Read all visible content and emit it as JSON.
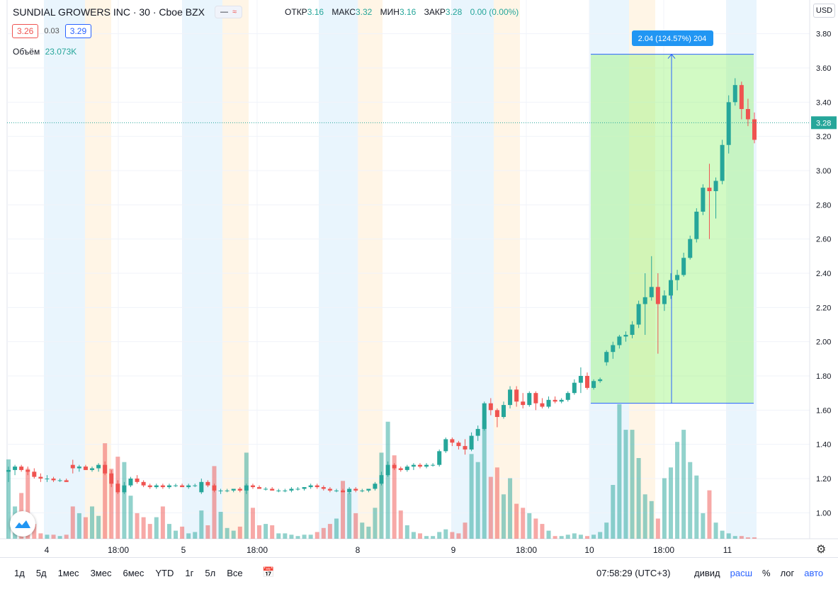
{
  "header": {
    "symbol": "SUNDIAL GROWERS INC · 30 · Cboe BZX",
    "open_label": "ОТКР",
    "open": "3.16",
    "high_label": "МАКС",
    "high": "3.32",
    "low_label": "МИН",
    "low": "3.16",
    "close_label": "ЗАКР",
    "close": "3.28",
    "change": "0.00 (0.00%)"
  },
  "quote": {
    "bid": "3.26",
    "spread": "0.03",
    "ask": "3.29"
  },
  "volume": {
    "label": "Объём",
    "value": "23.073K"
  },
  "currency": "USD",
  "bottom_bar": {
    "ranges": [
      "1д",
      "5д",
      "1мес",
      "3мес",
      "6мес",
      "YTD",
      "1г",
      "5л",
      "Все"
    ],
    "clock": "07:58:29 (UTC+3)",
    "options": [
      "дивид",
      "расш",
      "%",
      "лог",
      "авто"
    ]
  },
  "chart_data": {
    "type": "candlestick",
    "ylim": [
      0.84,
      3.94
    ],
    "y_ticks": [
      "3.80",
      "3.60",
      "3.40",
      "3.20",
      "3.00",
      "2.80",
      "2.60",
      "2.40",
      "2.20",
      "2.00",
      "1.80",
      "1.60",
      "1.40",
      "1.20",
      "1.00"
    ],
    "x_ticks": [
      "4",
      "18:00",
      "5",
      "18:00",
      "8",
      "9",
      "18:00",
      "10",
      "18:00",
      "11"
    ],
    "last_price": "3.28",
    "measure_label": "2.04 (124.57%) 204",
    "measure_range": [
      1.64,
      3.68
    ],
    "colors": {
      "up": "#26a69a",
      "down": "#ef5350",
      "measure": "#2962ff"
    },
    "candles_approx": [
      [
        1.24,
        1.27,
        1.18,
        1.25
      ],
      [
        1.25,
        1.28,
        1.22,
        1.27
      ],
      [
        1.27,
        1.28,
        1.24,
        1.25
      ],
      [
        1.25,
        1.27,
        1.22,
        1.24
      ],
      [
        1.24,
        1.26,
        1.2,
        1.21
      ],
      [
        1.21,
        1.23,
        1.18,
        1.2
      ],
      [
        1.2,
        1.22,
        1.18,
        1.2
      ],
      [
        1.2,
        1.21,
        1.18,
        1.19
      ],
      [
        1.19,
        1.2,
        1.18,
        1.19
      ],
      [
        1.19,
        1.2,
        1.18,
        1.18
      ],
      [
        1.28,
        1.31,
        1.23,
        1.26
      ],
      [
        1.26,
        1.28,
        1.24,
        1.27
      ],
      [
        1.27,
        1.28,
        1.25,
        1.25
      ],
      [
        1.25,
        1.27,
        1.24,
        1.26
      ],
      [
        1.26,
        1.29,
        1.24,
        1.28
      ],
      [
        1.28,
        1.3,
        1.22,
        1.23
      ],
      [
        1.23,
        1.25,
        1.15,
        1.17
      ],
      [
        1.17,
        1.19,
        1.11,
        1.12
      ],
      [
        1.12,
        1.18,
        1.11,
        1.16
      ],
      [
        1.16,
        1.21,
        1.15,
        1.2
      ],
      [
        1.2,
        1.22,
        1.17,
        1.18
      ],
      [
        1.18,
        1.19,
        1.15,
        1.16
      ],
      [
        1.16,
        1.17,
        1.14,
        1.15
      ],
      [
        1.15,
        1.17,
        1.14,
        1.16
      ],
      [
        1.16,
        1.17,
        1.14,
        1.15
      ],
      [
        1.15,
        1.17,
        1.14,
        1.16
      ],
      [
        1.16,
        1.17,
        1.15,
        1.16
      ],
      [
        1.16,
        1.17,
        1.15,
        1.15
      ],
      [
        1.15,
        1.17,
        1.14,
        1.16
      ],
      [
        1.16,
        1.17,
        1.15,
        1.16
      ],
      [
        1.12,
        1.2,
        1.11,
        1.18
      ],
      [
        1.18,
        1.19,
        1.15,
        1.16
      ],
      [
        1.16,
        1.17,
        1.12,
        1.13
      ],
      [
        1.13,
        1.14,
        1.11,
        1.13
      ],
      [
        1.13,
        1.14,
        1.12,
        1.13
      ],
      [
        1.13,
        1.14,
        1.12,
        1.14
      ],
      [
        1.14,
        1.15,
        1.12,
        1.13
      ],
      [
        1.13,
        1.17,
        1.11,
        1.16
      ],
      [
        1.16,
        1.17,
        1.14,
        1.15
      ],
      [
        1.15,
        1.16,
        1.14,
        1.14
      ],
      [
        1.14,
        1.15,
        1.13,
        1.14
      ],
      [
        1.14,
        1.15,
        1.13,
        1.13
      ],
      [
        1.13,
        1.14,
        1.12,
        1.13
      ],
      [
        1.13,
        1.14,
        1.12,
        1.13
      ],
      [
        1.13,
        1.15,
        1.12,
        1.14
      ],
      [
        1.14,
        1.15,
        1.13,
        1.14
      ],
      [
        1.14,
        1.15,
        1.13,
        1.15
      ],
      [
        1.15,
        1.17,
        1.14,
        1.16
      ],
      [
        1.16,
        1.17,
        1.14,
        1.15
      ],
      [
        1.15,
        1.16,
        1.13,
        1.14
      ],
      [
        1.14,
        1.15,
        1.12,
        1.13
      ],
      [
        1.13,
        1.14,
        1.12,
        1.13
      ],
      [
        1.13,
        1.14,
        1.12,
        1.12
      ],
      [
        1.12,
        1.15,
        1.11,
        1.14
      ],
      [
        1.14,
        1.15,
        1.12,
        1.13
      ],
      [
        1.13,
        1.14,
        1.12,
        1.13
      ],
      [
        1.13,
        1.14,
        1.12,
        1.14
      ],
      [
        1.14,
        1.18,
        1.13,
        1.17
      ],
      [
        1.17,
        1.24,
        1.16,
        1.22
      ],
      [
        1.22,
        1.3,
        1.21,
        1.28
      ],
      [
        1.28,
        1.29,
        1.25,
        1.26
      ],
      [
        1.26,
        1.27,
        1.24,
        1.25
      ],
      [
        1.25,
        1.28,
        1.24,
        1.27
      ],
      [
        1.27,
        1.29,
        1.25,
        1.28
      ],
      [
        1.28,
        1.29,
        1.26,
        1.27
      ],
      [
        1.27,
        1.29,
        1.26,
        1.28
      ],
      [
        1.28,
        1.29,
        1.27,
        1.28
      ],
      [
        1.28,
        1.37,
        1.27,
        1.36
      ],
      [
        1.36,
        1.44,
        1.35,
        1.43
      ],
      [
        1.43,
        1.44,
        1.39,
        1.41
      ],
      [
        1.41,
        1.42,
        1.37,
        1.39
      ],
      [
        1.39,
        1.43,
        1.34,
        1.37
      ],
      [
        1.37,
        1.47,
        1.36,
        1.45
      ],
      [
        1.45,
        1.51,
        1.42,
        1.49
      ],
      [
        1.49,
        1.65,
        1.48,
        1.64
      ],
      [
        1.64,
        1.67,
        1.57,
        1.6
      ],
      [
        1.6,
        1.61,
        1.5,
        1.56
      ],
      [
        1.56,
        1.65,
        1.55,
        1.63
      ],
      [
        1.63,
        1.74,
        1.61,
        1.72
      ],
      [
        1.72,
        1.74,
        1.62,
        1.65
      ],
      [
        1.65,
        1.7,
        1.61,
        1.63
      ],
      [
        1.63,
        1.71,
        1.62,
        1.7
      ],
      [
        1.7,
        1.71,
        1.6,
        1.64
      ],
      [
        1.64,
        1.67,
        1.61,
        1.62
      ],
      [
        1.62,
        1.68,
        1.61,
        1.66
      ],
      [
        1.66,
        1.68,
        1.64,
        1.65
      ],
      [
        1.65,
        1.67,
        1.64,
        1.66
      ],
      [
        1.66,
        1.71,
        1.65,
        1.7
      ],
      [
        1.7,
        1.78,
        1.69,
        1.76
      ],
      [
        1.76,
        1.85,
        1.7,
        1.8
      ],
      [
        1.8,
        1.82,
        1.72,
        1.73
      ],
      [
        1.73,
        1.78,
        1.72,
        1.77
      ],
      [
        1.77,
        1.79,
        1.76,
        1.78
      ],
      [
        1.88,
        1.95,
        1.86,
        1.94
      ],
      [
        1.94,
        2.0,
        1.9,
        1.98
      ],
      [
        1.98,
        2.04,
        1.96,
        2.03
      ],
      [
        2.03,
        2.06,
        2.0,
        2.04
      ],
      [
        2.04,
        2.12,
        2.02,
        2.1
      ],
      [
        2.1,
        2.24,
        2.08,
        2.22
      ],
      [
        2.22,
        2.4,
        2.04,
        2.26
      ],
      [
        2.26,
        2.5,
        2.24,
        2.32
      ],
      [
        2.32,
        2.4,
        1.93,
        2.22
      ],
      [
        2.22,
        2.3,
        2.18,
        2.27
      ],
      [
        2.27,
        2.4,
        2.25,
        2.36
      ],
      [
        2.36,
        2.42,
        2.3,
        2.39
      ],
      [
        2.39,
        2.52,
        2.38,
        2.49
      ],
      [
        2.49,
        2.62,
        2.48,
        2.6
      ],
      [
        2.6,
        2.78,
        2.58,
        2.76
      ],
      [
        2.76,
        2.92,
        2.74,
        2.9
      ],
      [
        2.9,
        3.04,
        2.6,
        2.88
      ],
      [
        2.88,
        2.96,
        2.72,
        2.94
      ],
      [
        2.94,
        3.18,
        2.92,
        3.15
      ],
      [
        3.15,
        3.44,
        3.1,
        3.4
      ],
      [
        3.4,
        3.54,
        3.38,
        3.5
      ],
      [
        3.5,
        3.52,
        3.3,
        3.36
      ],
      [
        3.36,
        3.42,
        3.26,
        3.3
      ],
      [
        3.3,
        3.34,
        3.16,
        3.18
      ]
    ],
    "volume_ratio_approx": [
      0.59,
      0.24,
      0.34,
      0.52,
      0.11,
      0.04,
      0.03,
      0.03,
      0.02,
      0.03,
      0.24,
      0.19,
      0.16,
      0.24,
      0.17,
      0.71,
      0.52,
      0.61,
      0.57,
      0.32,
      0.19,
      0.16,
      0.11,
      0.16,
      0.24,
      0.11,
      0.06,
      0.09,
      0.04,
      0.05,
      0.21,
      0.1,
      0.54,
      0.2,
      0.08,
      0.06,
      0.09,
      0.64,
      0.23,
      0.1,
      0.11,
      0.1,
      0.04,
      0.04,
      0.03,
      0.02,
      0.03,
      0.03,
      0.05,
      0.08,
      0.11,
      0.15,
      0.43,
      0.34,
      0.19,
      0.12,
      0.09,
      0.23,
      0.64,
      0.87,
      0.62,
      0.21,
      0.1,
      0.05,
      0.04,
      0.02,
      0.02,
      0.05,
      0.07,
      0.05,
      0.04,
      0.12,
      0.63,
      0.57,
      0.88,
      0.46,
      0.53,
      0.33,
      0.45,
      0.26,
      0.23,
      0.19,
      0.15,
      0.11,
      0.06,
      0.02,
      0.02,
      0.03,
      0.04,
      0.03,
      0.02,
      0.03,
      0.05,
      0.12,
      0.4,
      1.0,
      0.81,
      0.81,
      0.6,
      0.33,
      0.28,
      0.15,
      0.45,
      0.53,
      0.72,
      0.81,
      0.57,
      0.47,
      0.19,
      0.36,
      0.12,
      0.06,
      0.04,
      0.02,
      0.02,
      0.01,
      0.01
    ]
  }
}
